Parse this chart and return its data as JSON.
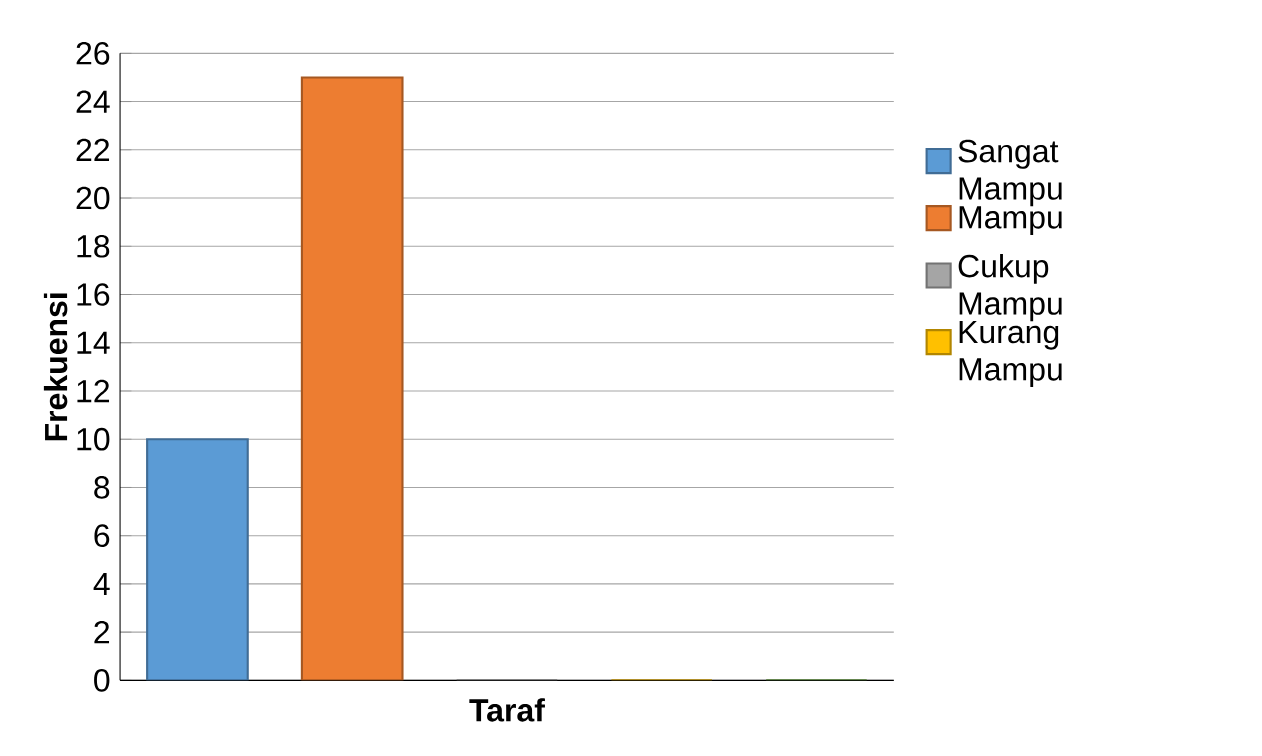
{
  "chart_data": {
    "type": "bar",
    "xlabel": "Taraf",
    "ylabel": "Frekuensi",
    "categories": [
      null
    ],
    "series": [
      {
        "name": "Sangat Mampu",
        "color": "#5b9bd5",
        "values": [
          10
        ]
      },
      {
        "name": "Mampu",
        "color": "#ed7d31",
        "values": [
          25
        ]
      },
      {
        "name": "Cukup Mampu",
        "color": "#a5a5a5",
        "values": [
          0
        ]
      },
      {
        "name": "Kurang Mampu",
        "color": "#ffc000",
        "values": [
          0
        ]
      },
      {
        "color": "#70ad47",
        "values": [
          0
        ]
      }
    ],
    "ylim": [
      0,
      26
    ],
    "yticks": [
      0,
      2,
      4,
      6,
      8,
      10,
      12,
      14,
      16,
      18,
      20,
      22,
      24,
      26
    ],
    "grid": "y",
    "legend": "right"
  }
}
